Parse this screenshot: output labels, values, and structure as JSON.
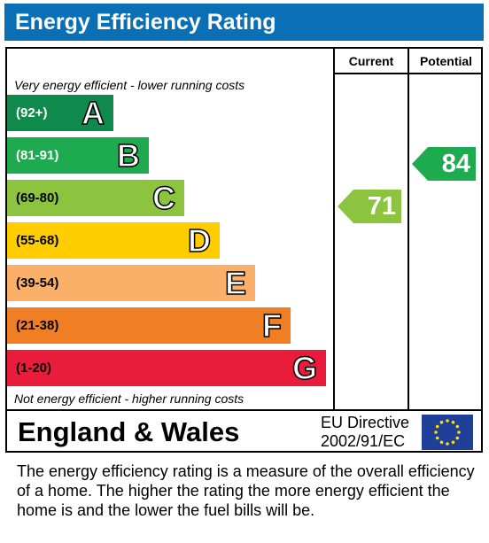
{
  "title": "Energy Efficiency Rating",
  "columns": {
    "current": "Current",
    "potential": "Potential"
  },
  "notes": {
    "top": "Very energy efficient - lower running costs",
    "bottom": "Not energy efficient - higher running costs"
  },
  "chart_data": {
    "type": "bar",
    "bands": [
      {
        "letter": "A",
        "range": "(92+)",
        "color": "#0f8a4c",
        "range_color": "#ffffff"
      },
      {
        "letter": "B",
        "range": "(81-91)",
        "color": "#1eaa4e",
        "range_color": "#ffffff"
      },
      {
        "letter": "C",
        "range": "(69-80)",
        "color": "#8cc43f",
        "range_color": "#000000"
      },
      {
        "letter": "D",
        "range": "(55-68)",
        "color": "#ffcd00",
        "range_color": "#000000"
      },
      {
        "letter": "E",
        "range": "(39-54)",
        "color": "#fbb06a",
        "range_color": "#000000"
      },
      {
        "letter": "F",
        "range": "(21-38)",
        "color": "#f07e24",
        "range_color": "#000000"
      },
      {
        "letter": "G",
        "range": "(1-20)",
        "color": "#ea1c3b",
        "range_color": "#000000"
      }
    ],
    "current": {
      "value": 71,
      "label": "71",
      "band": "C",
      "color": "#8cc43f"
    },
    "potential": {
      "value": 84,
      "label": "84",
      "band": "B",
      "color": "#1eaa4e"
    }
  },
  "footer": {
    "region": "England & Wales",
    "directive_line1": "EU Directive",
    "directive_line2": "2002/91/EC",
    "flag_colors": {
      "background": "#1f3f99",
      "stars": "#ffdd00"
    }
  },
  "description": "The energy efficiency rating is a measure of the overall efficiency of a home.  The higher the rating the more energy efficient the home is and the lower the fuel bills will be."
}
